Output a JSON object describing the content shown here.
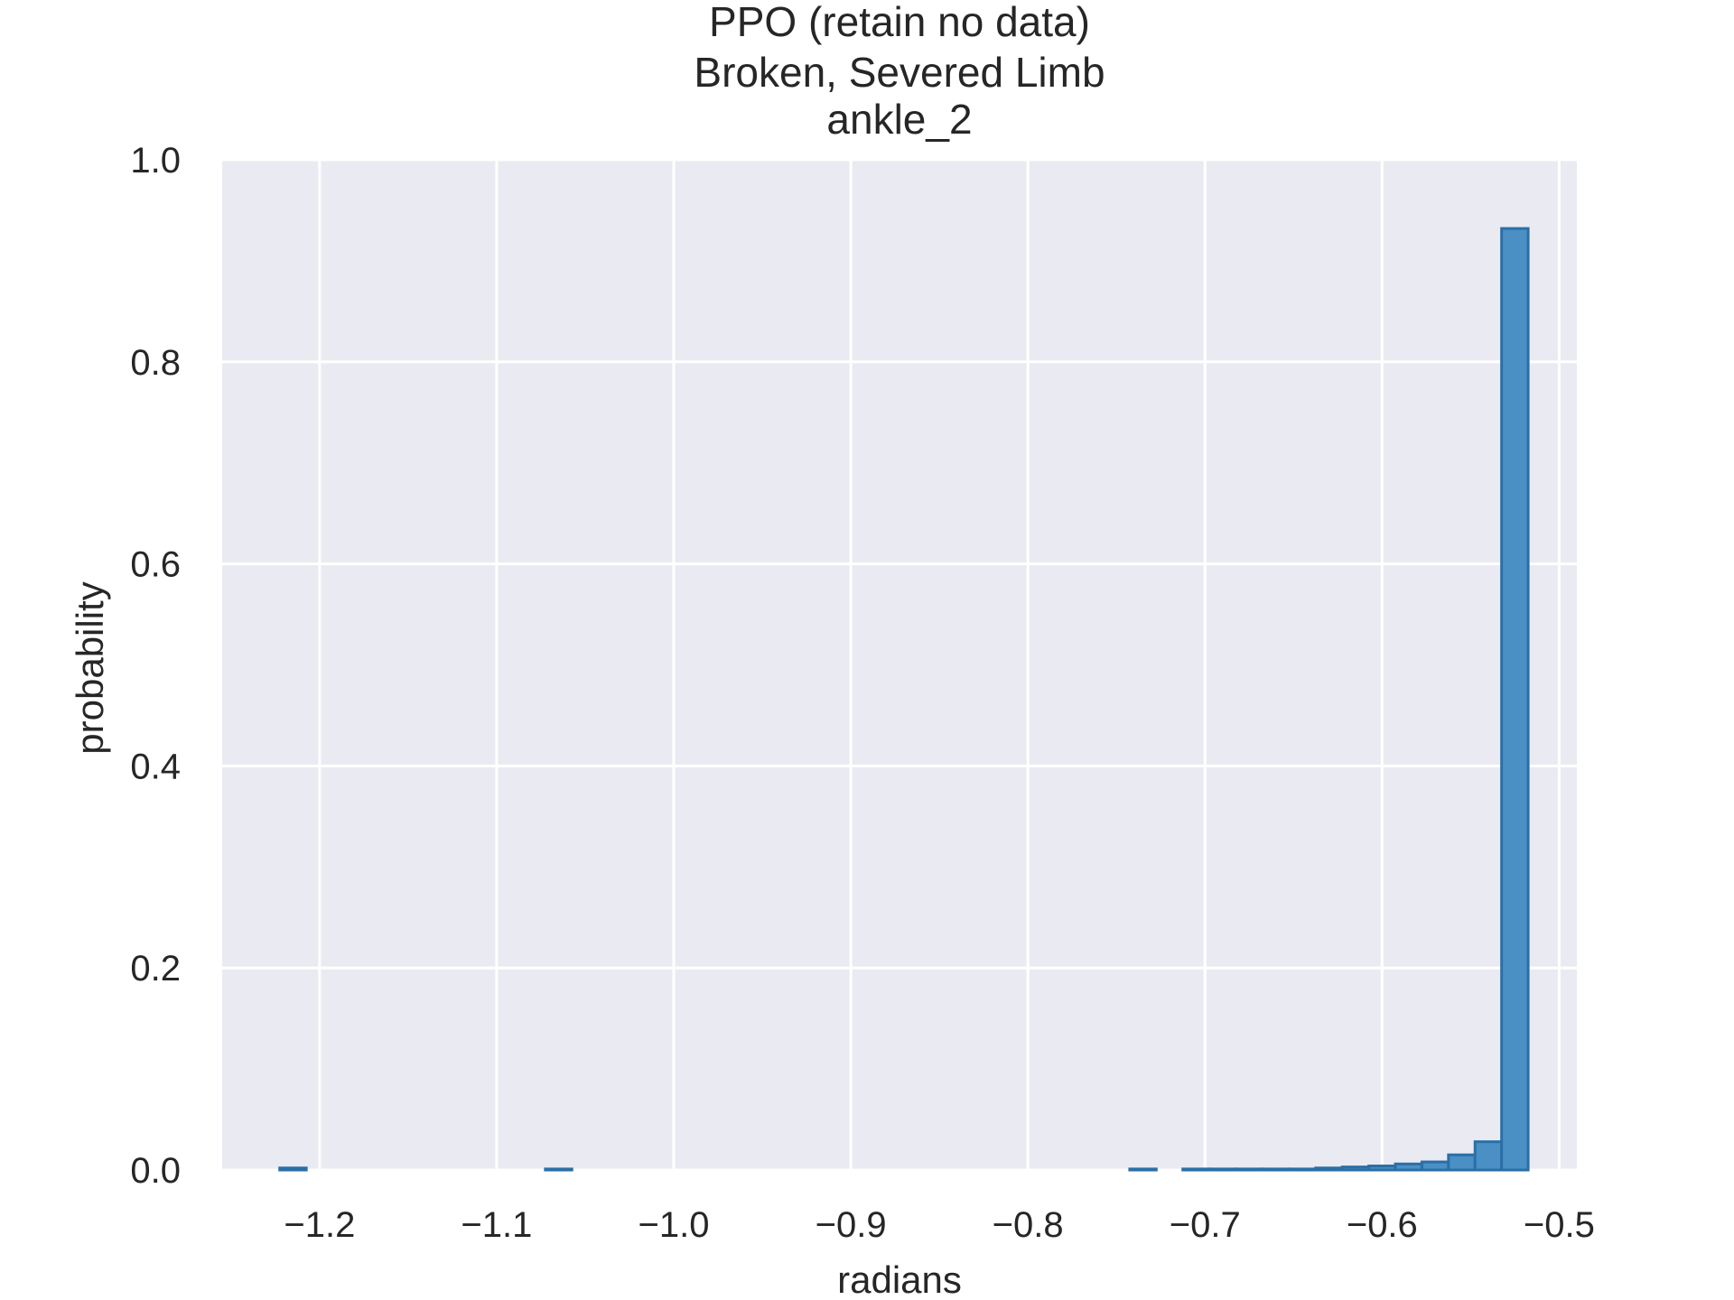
{
  "chart_data": {
    "type": "bar",
    "title_lines": [
      "PPO (retain no data)",
      "Broken, Severed Limb",
      "ankle_2"
    ],
    "xlabel": "radians",
    "ylabel": "probability",
    "xlim": [
      -1.255,
      -0.49
    ],
    "ylim": [
      0,
      1.0
    ],
    "xticks": [
      -1.2,
      -1.1,
      -1.0,
      -0.9,
      -0.8,
      -0.7,
      -0.6,
      -0.5
    ],
    "xtick_labels": [
      "−1.2",
      "−1.1",
      "−1.0",
      "−0.9",
      "−0.8",
      "−0.7",
      "−0.6",
      "−0.5"
    ],
    "yticks": [
      0.0,
      0.2,
      0.4,
      0.6,
      0.8,
      1.0
    ],
    "ytick_labels": [
      "0.0",
      "0.2",
      "0.4",
      "0.6",
      "0.8",
      "1.0"
    ],
    "grid": true,
    "colors": {
      "plot_background": "#EAEAF2",
      "grid": "#FFFFFF",
      "bar_fill": "#4A90C4",
      "bar_edge": "#2B6FA6"
    },
    "bins": [
      {
        "x0": -1.2225,
        "x1": -1.2075,
        "y": 0.002
      },
      {
        "x0": -1.0725,
        "x1": -1.0575,
        "y": 0.001
      },
      {
        "x0": -0.7425,
        "x1": -0.7275,
        "y": 0.001
      },
      {
        "x0": -0.7125,
        "x1": -0.6975,
        "y": 0.001
      },
      {
        "x0": -0.6975,
        "x1": -0.6825,
        "y": 0.001
      },
      {
        "x0": -0.6825,
        "x1": -0.6675,
        "y": 0.001
      },
      {
        "x0": -0.6675,
        "x1": -0.6525,
        "y": 0.001
      },
      {
        "x0": -0.6525,
        "x1": -0.6375,
        "y": 0.001
      },
      {
        "x0": -0.6375,
        "x1": -0.6225,
        "y": 0.002
      },
      {
        "x0": -0.6225,
        "x1": -0.6075,
        "y": 0.003
      },
      {
        "x0": -0.6075,
        "x1": -0.5925,
        "y": 0.004
      },
      {
        "x0": -0.5925,
        "x1": -0.5775,
        "y": 0.006
      },
      {
        "x0": -0.5775,
        "x1": -0.5625,
        "y": 0.008
      },
      {
        "x0": -0.5625,
        "x1": -0.5475,
        "y": 0.015
      },
      {
        "x0": -0.5475,
        "x1": -0.5325,
        "y": 0.028
      },
      {
        "x0": -0.5325,
        "x1": -0.5175,
        "y": 0.932
      }
    ]
  }
}
